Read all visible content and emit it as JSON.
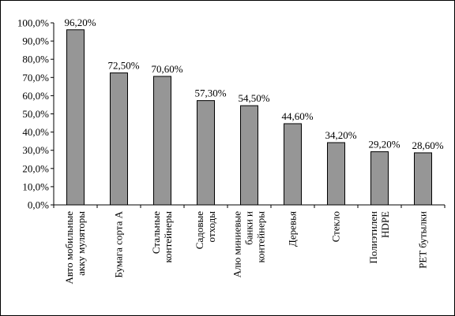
{
  "chart_data": {
    "type": "bar",
    "categories": [
      [
        "Авто мобильные",
        "акку муляторы"
      ],
      [
        "Бумага сорта А"
      ],
      [
        "Стальные",
        "контейнеры"
      ],
      [
        "Садовые",
        "отходы"
      ],
      [
        "Алю миниевые",
        "банки и",
        "контейнеры"
      ],
      [
        "Деревья"
      ],
      [
        "Стекло"
      ],
      [
        "Полиэтилен",
        "HDPE"
      ],
      [
        "PET бутылки"
      ]
    ],
    "values": [
      96.2,
      72.5,
      70.6,
      57.3,
      54.5,
      44.6,
      34.2,
      29.2,
      28.6
    ],
    "data_labels": [
      "96,20%",
      "72,50%",
      "70,60%",
      "57,30%",
      "54,50%",
      "44,60%",
      "34,20%",
      "29,20%",
      "28,60%"
    ],
    "ylim": [
      0,
      100
    ],
    "yticks": [
      0,
      10,
      20,
      30,
      40,
      50,
      60,
      70,
      80,
      90,
      100
    ],
    "ytick_labels": [
      "0,0%",
      "10,0%",
      "20,0%",
      "30,0%",
      "40,0%",
      "50,0%",
      "60,0%",
      "70,0%",
      "80,0%",
      "90,0%",
      "100,0%"
    ],
    "grid": false,
    "legend": "none",
    "bar_color": "#969696"
  }
}
